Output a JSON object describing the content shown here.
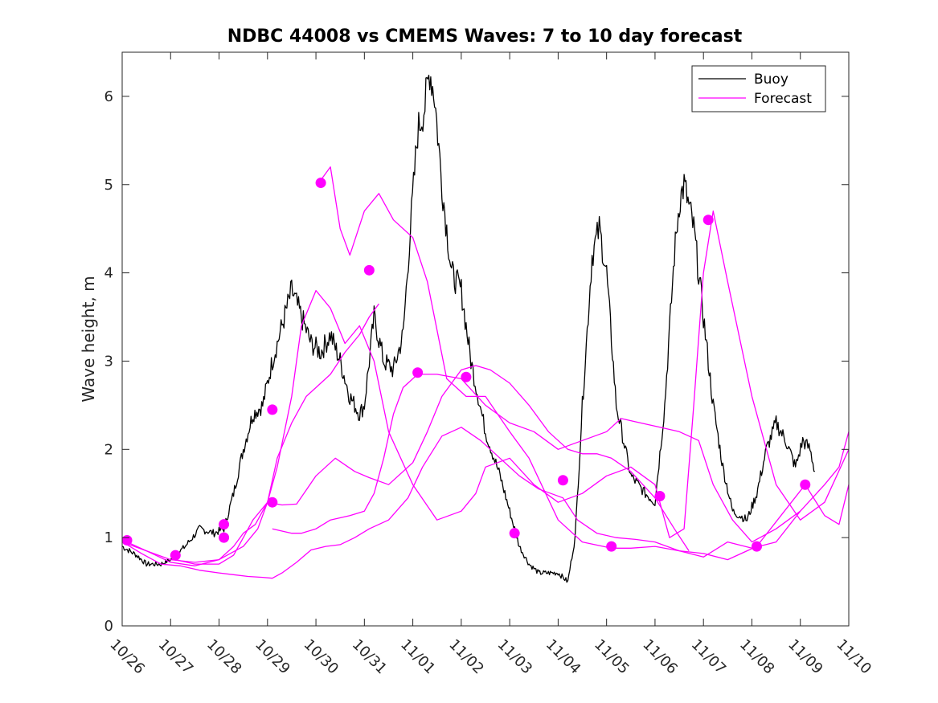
{
  "chart_data": {
    "type": "line",
    "title": "NDBC 44008 vs CMEMS Waves: 7 to 10 day forecast",
    "xlabel": "",
    "ylabel": "Wave height, m",
    "xlim": [
      0,
      15
    ],
    "ylim": [
      0,
      6.5
    ],
    "x_tick_values": [
      0,
      1,
      2,
      3,
      4,
      5,
      6,
      7,
      8,
      9,
      10,
      11,
      12,
      13,
      14,
      15
    ],
    "x_tick_labels": [
      "10/26",
      "10/27",
      "10/28",
      "10/29",
      "10/30",
      "10/31",
      "11/01",
      "11/02",
      "11/03",
      "11/04",
      "11/05",
      "11/06",
      "11/07",
      "11/08",
      "11/09",
      "11/10"
    ],
    "y_tick_values": [
      0,
      1,
      2,
      3,
      4,
      5,
      6
    ],
    "y_tick_labels": [
      "0",
      "1",
      "2",
      "3",
      "4",
      "5",
      "6"
    ],
    "legend": {
      "position": "top-right",
      "entries": [
        {
          "label": "Buoy",
          "color": "#000000"
        },
        {
          "label": "Forecast",
          "color": "#ff00ff"
        }
      ]
    },
    "colors": {
      "buoy": "#000000",
      "forecast": "#ff00ff"
    },
    "series": [
      {
        "name": "Buoy",
        "color": "#000000",
        "jitter": 0.12,
        "x": [
          0,
          0.3,
          0.5,
          0.8,
          1.0,
          1.3,
          1.6,
          1.9,
          2.1,
          2.3,
          2.5,
          2.7,
          2.9,
          3.1,
          3.3,
          3.5,
          3.7,
          3.9,
          4.1,
          4.3,
          4.5,
          4.7,
          4.9,
          5.0,
          5.2,
          5.4,
          5.6,
          5.8,
          5.95,
          6.1,
          6.25,
          6.35,
          6.45,
          6.6,
          6.8,
          7.0,
          7.2,
          7.5,
          7.8,
          8.0,
          8.2,
          8.4,
          8.6,
          8.8,
          9.0,
          9.2,
          9.35,
          9.5,
          9.7,
          9.85,
          10.0,
          10.2,
          10.5,
          10.8,
          11.0,
          11.2,
          11.4,
          11.5,
          11.6,
          11.8,
          12.0,
          12.2,
          12.4,
          12.6,
          12.9,
          13.1,
          13.3,
          13.5,
          13.7,
          13.9,
          14.05,
          14.2,
          14.3
        ],
        "y": [
          0.9,
          0.8,
          0.7,
          0.7,
          0.75,
          0.9,
          1.1,
          1.05,
          1.1,
          1.5,
          2.0,
          2.4,
          2.5,
          3.0,
          3.4,
          3.8,
          3.5,
          3.2,
          3.1,
          3.3,
          3.0,
          2.6,
          2.4,
          2.5,
          3.5,
          3.0,
          2.9,
          3.3,
          4.5,
          5.6,
          5.9,
          6.3,
          6.0,
          5.0,
          4.0,
          3.8,
          3.0,
          2.2,
          1.7,
          1.3,
          0.9,
          0.7,
          0.6,
          0.6,
          0.6,
          0.5,
          1.0,
          2.5,
          4.2,
          4.5,
          4.0,
          2.5,
          1.7,
          1.5,
          1.4,
          2.5,
          4.2,
          4.8,
          5.0,
          4.5,
          3.5,
          2.5,
          1.8,
          1.3,
          1.2,
          1.5,
          2.0,
          2.3,
          2.1,
          1.8,
          2.1,
          2.0,
          1.75
        ]
      },
      {
        "name": "Forecast",
        "color": "#ff00ff",
        "x": [
          0,
          0.5,
          1.0,
          1.5,
          2.0,
          2.3,
          2.5,
          2.75,
          3.0,
          3.2,
          3.5,
          3.7,
          4.0,
          4.3,
          4.6,
          4.9,
          5.2,
          5.5,
          6.0,
          6.5,
          7.0,
          7.3,
          7.5,
          8.0,
          8.5,
          9.0,
          9.5,
          10.0,
          10.5,
          11.0,
          11.3,
          11.6,
          11.8,
          12.0,
          12.2,
          12.5,
          13.0,
          13.5,
          14.0,
          14.5,
          15.0
        ],
        "y": [
          0.95,
          0.85,
          0.72,
          0.68,
          0.75,
          0.9,
          1.05,
          1.15,
          1.4,
          1.8,
          2.6,
          3.4,
          3.8,
          3.6,
          3.2,
          3.4,
          3.0,
          2.2,
          1.6,
          1.2,
          1.3,
          1.5,
          1.8,
          1.9,
          1.6,
          1.4,
          1.5,
          1.7,
          1.8,
          1.6,
          1.0,
          1.1,
          2.5,
          4.0,
          4.7,
          3.9,
          2.6,
          1.6,
          1.2,
          1.4,
          2.0
        ]
      },
      {
        "name": "Forecast",
        "color": "#ff00ff",
        "x": [
          0.1,
          0.5,
          1.0,
          1.5,
          2.0,
          2.5,
          2.8,
          3.0,
          3.2,
          3.5,
          3.8,
          4.0,
          4.3,
          4.6,
          4.9,
          5.1,
          5.3
        ],
        "y": [
          0.95,
          0.85,
          0.75,
          0.72,
          0.75,
          0.9,
          1.1,
          1.4,
          1.9,
          2.3,
          2.6,
          2.7,
          2.85,
          3.1,
          3.3,
          3.5,
          3.65
        ]
      },
      {
        "name": "Forecast",
        "color": "#ff00ff",
        "x": [
          1.1,
          1.5,
          2.0,
          2.3,
          2.5,
          2.7,
          3.0,
          3.3,
          3.6,
          4.0,
          4.4,
          4.8,
          5.1,
          5.5,
          6.0,
          6.3,
          6.6,
          7.0,
          7.3,
          7.6,
          8.0,
          8.4,
          8.8,
          9.2,
          9.5,
          9.8,
          10.1,
          10.5,
          11.0,
          11.4,
          11.7
        ],
        "y": [
          0.75,
          0.7,
          0.7,
          0.8,
          1.0,
          1.2,
          1.4,
          1.37,
          1.38,
          1.7,
          1.9,
          1.75,
          1.68,
          1.6,
          1.85,
          2.2,
          2.6,
          2.9,
          2.95,
          2.9,
          2.75,
          2.5,
          2.2,
          2.0,
          1.95,
          1.95,
          1.9,
          1.75,
          1.45,
          1.1,
          0.85
        ]
      },
      {
        "name": "Forecast",
        "color": "#ff00ff",
        "x": [
          3.1,
          3.5,
          3.7,
          4.0,
          4.3,
          4.7,
          5.0,
          5.2,
          5.4,
          5.6,
          5.8,
          6.1,
          6.5,
          7.0,
          7.5,
          8.0,
          8.5,
          9.0,
          9.5,
          10.0,
          10.3,
          10.7,
          11.1,
          11.5,
          11.9,
          12.2,
          12.6,
          13.0,
          13.5,
          14.0
        ],
        "y": [
          1.1,
          1.05,
          1.05,
          1.1,
          1.2,
          1.25,
          1.3,
          1.5,
          1.9,
          2.4,
          2.7,
          2.85,
          2.85,
          2.8,
          2.5,
          2.3,
          2.2,
          2.0,
          2.1,
          2.2,
          2.35,
          2.3,
          2.25,
          2.2,
          2.1,
          1.6,
          1.2,
          0.95,
          1.1,
          1.3
        ]
      },
      {
        "name": "Forecast",
        "color": "#ff00ff",
        "x": [
          4.1,
          4.3,
          4.5,
          4.7,
          5.0,
          5.3,
          5.6,
          6.0,
          6.3,
          6.7,
          7.1,
          7.5,
          8.0,
          8.4,
          9.0,
          9.5,
          10.1,
          10.5,
          11.0,
          11.5,
          12.0,
          12.5,
          13.0,
          13.5,
          14.0,
          14.5,
          14.8,
          15.0
        ],
        "y": [
          5.05,
          5.2,
          4.5,
          4.2,
          4.7,
          4.9,
          4.6,
          4.4,
          3.9,
          2.8,
          2.6,
          2.6,
          2.2,
          1.9,
          1.2,
          0.95,
          0.88,
          0.88,
          0.9,
          0.85,
          0.78,
          0.95,
          0.88,
          0.95,
          1.3,
          1.6,
          1.8,
          2.2
        ]
      },
      {
        "name": "Forecast",
        "color": "#ff00ff",
        "x": [
          0.1,
          0.4,
          0.8,
          1.2,
          1.6,
          2.0,
          2.3,
          2.6,
          2.9,
          3.1,
          3.3,
          3.6,
          3.9,
          4.2,
          4.5,
          4.8,
          5.1,
          5.3,
          5.5,
          5.9,
          6.2,
          6.6,
          7.0,
          7.4,
          7.8,
          8.2,
          8.6,
          9.1,
          9.4,
          9.8,
          10.2,
          10.6,
          11.0,
          11.5,
          12.0,
          12.5,
          13.1,
          13.6,
          14.1,
          14.5,
          14.8,
          15.0
        ],
        "y": [
          0.92,
          0.82,
          0.7,
          0.68,
          0.63,
          0.6,
          0.58,
          0.56,
          0.55,
          0.54,
          0.6,
          0.72,
          0.86,
          0.9,
          0.92,
          1.0,
          1.1,
          1.15,
          1.2,
          1.45,
          1.8,
          2.15,
          2.25,
          2.1,
          1.9,
          1.7,
          1.55,
          1.45,
          1.2,
          1.05,
          1.0,
          0.98,
          0.95,
          0.85,
          0.82,
          0.75,
          0.9,
          1.25,
          1.6,
          1.25,
          1.15,
          1.6
        ]
      }
    ],
    "markers": {
      "x": [
        0.1,
        1.1,
        2.1,
        2.1,
        3.1,
        3.1,
        4.1,
        5.1,
        6.1,
        7.1,
        8.1,
        9.1,
        10.1,
        11.1,
        12.1,
        13.1,
        14.1
      ],
      "y": [
        0.97,
        0.8,
        1.15,
        1.0,
        1.4,
        2.45,
        5.02,
        4.03,
        2.87,
        2.82,
        1.05,
        1.65,
        0.9,
        1.47,
        4.6,
        0.9,
        1.6
      ]
    }
  }
}
